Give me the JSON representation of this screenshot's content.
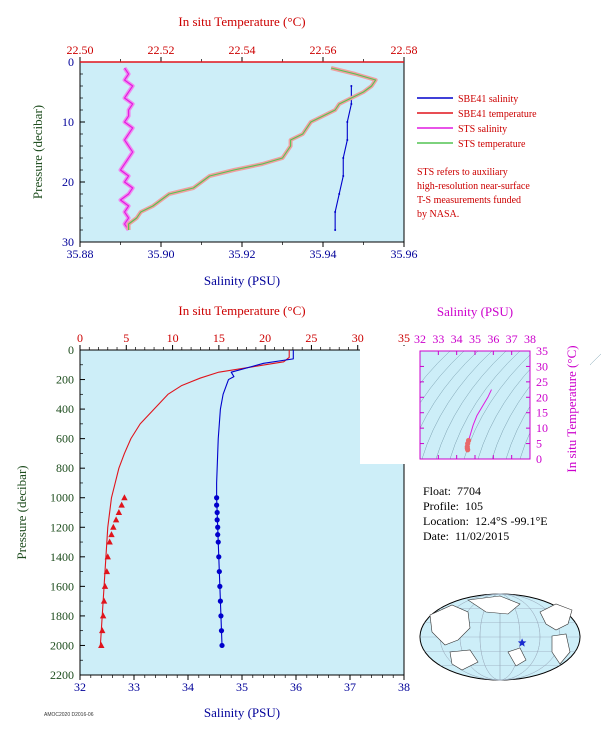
{
  "colors": {
    "plot_bg": "#cdeef8",
    "salinity": "#0000cc",
    "temperature": "#e0141c",
    "sts_salinity": "#e01ae0",
    "sts_temperature": "#52c452",
    "sts_salinity_light": "#f088f0",
    "sts_temperature_light": "#f0a0a0",
    "axis_red": "#cc0000",
    "axis_blue": "#000099",
    "axis_green": "#1e4d1e",
    "axis_magenta": "#cc00cc"
  },
  "legend": {
    "items": [
      {
        "label": "SBE41 salinity",
        "color": "#0000cc"
      },
      {
        "label": "SBE41 temperature",
        "color": "#e0141c"
      },
      {
        "label": "STS salinity",
        "color": "#e01ae0"
      },
      {
        "label": "STS temperature",
        "color": "#52c452"
      }
    ],
    "note": [
      "STS refers to auxiliary",
      "high-resolution near-surface",
      "T-S measurements funded",
      "by NASA."
    ]
  },
  "info": {
    "float_label": "Float:",
    "float_value": "7704",
    "profile_label": "Profile:",
    "profile_value": "105",
    "location_label": "Location:",
    "location_value": "12.4°S  -99.1°E",
    "date_label": "Date:",
    "date_value": "11/02/2015"
  },
  "footer": "AMOC2020 D2016-06",
  "map": {
    "marker_icon": "star-icon",
    "lat": -12.4,
    "lon": -99.1
  },
  "chart_data": [
    {
      "type": "line",
      "title": "",
      "top_axis_label": "In situ Temperature (°C)",
      "top_ticks": [
        "22.50",
        "22.52",
        "22.54",
        "22.56",
        "22.58"
      ],
      "top_lim": [
        22.5,
        22.58
      ],
      "bottom_axis_label": "Salinity (PSU)",
      "bottom_ticks": [
        "35.88",
        "35.90",
        "35.92",
        "35.94",
        "35.96"
      ],
      "bottom_lim": [
        35.88,
        35.96
      ],
      "y_axis_label": "Pressure (decibar)",
      "y_ticks": [
        "0",
        "10",
        "20",
        "30"
      ],
      "ylim": [
        0,
        30
      ],
      "y_inverted": true,
      "series": [
        {
          "name": "SBE41 salinity",
          "variable": "salinity",
          "points": [
            [
              35.943,
              28
            ],
            [
              35.943,
              25
            ],
            [
              35.944,
              22
            ],
            [
              35.945,
              19
            ],
            [
              35.945,
              16
            ],
            [
              35.946,
              13
            ],
            [
              35.946,
              10
            ],
            [
              35.947,
              7
            ],
            [
              35.947,
              4
            ]
          ]
        },
        {
          "name": "SBE41 temperature",
          "variable": "temperature",
          "points": [
            [
              22.5,
              0
            ],
            [
              22.58,
              0
            ]
          ]
        },
        {
          "name": "STS salinity",
          "variable": "salinity",
          "points": [
            [
              35.891,
              1
            ],
            [
              35.892,
              2
            ],
            [
              35.891,
              3
            ],
            [
              35.893,
              4
            ],
            [
              35.892,
              5
            ],
            [
              35.891,
              6
            ],
            [
              35.893,
              7
            ],
            [
              35.892,
              8
            ],
            [
              35.892,
              9
            ],
            [
              35.891,
              10
            ],
            [
              35.893,
              11
            ],
            [
              35.892,
              12
            ],
            [
              35.891,
              13
            ],
            [
              35.892,
              14
            ],
            [
              35.893,
              15
            ],
            [
              35.892,
              16
            ],
            [
              35.891,
              17
            ],
            [
              35.89,
              18
            ],
            [
              35.892,
              19
            ],
            [
              35.891,
              20
            ],
            [
              35.893,
              21
            ],
            [
              35.892,
              22
            ],
            [
              35.89,
              23
            ],
            [
              35.892,
              24
            ],
            [
              35.891,
              25
            ],
            [
              35.892,
              26
            ],
            [
              35.891,
              27
            ],
            [
              35.892,
              28
            ]
          ]
        },
        {
          "name": "STS temperature",
          "variable": "temperature",
          "points": [
            [
              22.562,
              1
            ],
            [
              22.568,
              2
            ],
            [
              22.573,
              3
            ],
            [
              22.572,
              4
            ],
            [
              22.57,
              5
            ],
            [
              22.567,
              6
            ],
            [
              22.564,
              7
            ],
            [
              22.563,
              8
            ],
            [
              22.56,
              9
            ],
            [
              22.557,
              10
            ],
            [
              22.556,
              11
            ],
            [
              22.555,
              12
            ],
            [
              22.552,
              13
            ],
            [
              22.552,
              14
            ],
            [
              22.551,
              15
            ],
            [
              22.55,
              16
            ],
            [
              22.545,
              17
            ],
            [
              22.538,
              18
            ],
            [
              22.532,
              19
            ],
            [
              22.53,
              20
            ],
            [
              22.528,
              21
            ],
            [
              22.522,
              22
            ],
            [
              22.52,
              23
            ],
            [
              22.518,
              24
            ],
            [
              22.515,
              25
            ],
            [
              22.514,
              26
            ],
            [
              22.512,
              27
            ],
            [
              22.512,
              28
            ]
          ]
        }
      ]
    },
    {
      "type": "line",
      "title": "",
      "top_axis_label": "In situ Temperature (°C)",
      "top_ticks": [
        "0",
        "5",
        "10",
        "15",
        "20",
        "25",
        "30",
        "35"
      ],
      "top_lim": [
        0,
        35
      ],
      "bottom_axis_label": "Salinity (PSU)",
      "bottom_ticks": [
        "32",
        "33",
        "34",
        "35",
        "36",
        "37",
        "38"
      ],
      "bottom_lim": [
        32,
        38
      ],
      "y_axis_label": "Pressure (decibar)",
      "y_ticks": [
        "0",
        "200",
        "400",
        "600",
        "800",
        "1000",
        "1200",
        "1400",
        "1600",
        "1800",
        "2000",
        "2200"
      ],
      "ylim": [
        0,
        2200
      ],
      "y_inverted": true,
      "series": [
        {
          "variable": "temperature",
          "color_key": "temperature",
          "points": [
            [
              22.6,
              0
            ],
            [
              22.6,
              50
            ],
            [
              22.0,
              80
            ],
            [
              15.0,
              150
            ],
            [
              13.0,
              190
            ],
            [
              11.0,
              240
            ],
            [
              9.5,
              300
            ],
            [
              8.0,
              400
            ],
            [
              6.5,
              500
            ],
            [
              5.5,
              600
            ],
            [
              4.8,
              700
            ],
            [
              4.2,
              800
            ],
            [
              3.8,
              900
            ],
            [
              3.4,
              1000
            ],
            [
              3.2,
              1100
            ],
            [
              3.0,
              1200
            ],
            [
              2.9,
              1300
            ],
            [
              2.8,
              1400
            ],
            [
              2.7,
              1500
            ],
            [
              2.6,
              1600
            ],
            [
              2.5,
              1700
            ],
            [
              2.4,
              1800
            ],
            [
              2.3,
              1900
            ],
            [
              2.2,
              2000
            ]
          ],
          "markers": [
            [
              4.8,
              1000
            ],
            [
              4.5,
              1050
            ],
            [
              4.2,
              1100
            ],
            [
              3.9,
              1150
            ],
            [
              3.6,
              1200
            ],
            [
              3.4,
              1250
            ],
            [
              3.2,
              1300
            ],
            [
              3.0,
              1400
            ],
            [
              2.9,
              1500
            ],
            [
              2.7,
              1600
            ],
            [
              2.6,
              1700
            ],
            [
              2.5,
              1800
            ],
            [
              2.4,
              1900
            ],
            [
              2.3,
              2000
            ]
          ]
        },
        {
          "variable": "salinity",
          "color_key": "salinity",
          "points": [
            [
              35.95,
              0
            ],
            [
              35.95,
              60
            ],
            [
              35.4,
              90
            ],
            [
              34.8,
              150
            ],
            [
              34.85,
              180
            ],
            [
              34.75,
              200
            ],
            [
              34.7,
              250
            ],
            [
              34.65,
              300
            ],
            [
              34.6,
              400
            ],
            [
              34.58,
              500
            ],
            [
              34.56,
              600
            ],
            [
              34.55,
              700
            ],
            [
              34.54,
              800
            ],
            [
              34.53,
              900
            ],
            [
              34.53,
              1000
            ],
            [
              34.54,
              1100
            ],
            [
              34.55,
              1200
            ],
            [
              34.56,
              1300
            ],
            [
              34.57,
              1400
            ],
            [
              34.58,
              1500
            ],
            [
              34.59,
              1600
            ],
            [
              34.6,
              1700
            ],
            [
              34.61,
              1800
            ],
            [
              34.62,
              1900
            ],
            [
              34.63,
              2000
            ]
          ],
          "markers": [
            [
              34.53,
              1000
            ],
            [
              34.53,
              1050
            ],
            [
              34.54,
              1100
            ],
            [
              34.54,
              1150
            ],
            [
              34.55,
              1200
            ],
            [
              34.55,
              1250
            ],
            [
              34.56,
              1300
            ],
            [
              34.57,
              1400
            ],
            [
              34.58,
              1500
            ],
            [
              34.59,
              1600
            ],
            [
              34.6,
              1700
            ],
            [
              34.61,
              1800
            ],
            [
              34.62,
              1900
            ],
            [
              34.63,
              2000
            ]
          ]
        }
      ]
    },
    {
      "type": "scatter",
      "title": "",
      "top_axis_label": "Salinity (PSU)",
      "top_ticks": [
        "32",
        "33",
        "34",
        "35",
        "36",
        "37",
        "38"
      ],
      "xlim": [
        32,
        38
      ],
      "right_axis_label": "In situ Temperature (°C)",
      "y_ticks": [
        "0",
        "5",
        "10",
        "15",
        "20",
        "25",
        "30",
        "35"
      ],
      "ylim": [
        0,
        35
      ],
      "series": [
        {
          "variable": "ts",
          "color_key": "sts_salinity",
          "points": [
            [
              35.9,
              22.5
            ],
            [
              35.7,
              20
            ],
            [
              35.4,
              17
            ],
            [
              35.1,
              14
            ],
            [
              34.9,
              11
            ],
            [
              34.8,
              9
            ],
            [
              34.7,
              7
            ],
            [
              34.65,
              6
            ],
            [
              34.6,
              5
            ],
            [
              34.58,
              4
            ],
            [
              34.58,
              3.5
            ],
            [
              34.6,
              3
            ]
          ]
        }
      ]
    }
  ]
}
